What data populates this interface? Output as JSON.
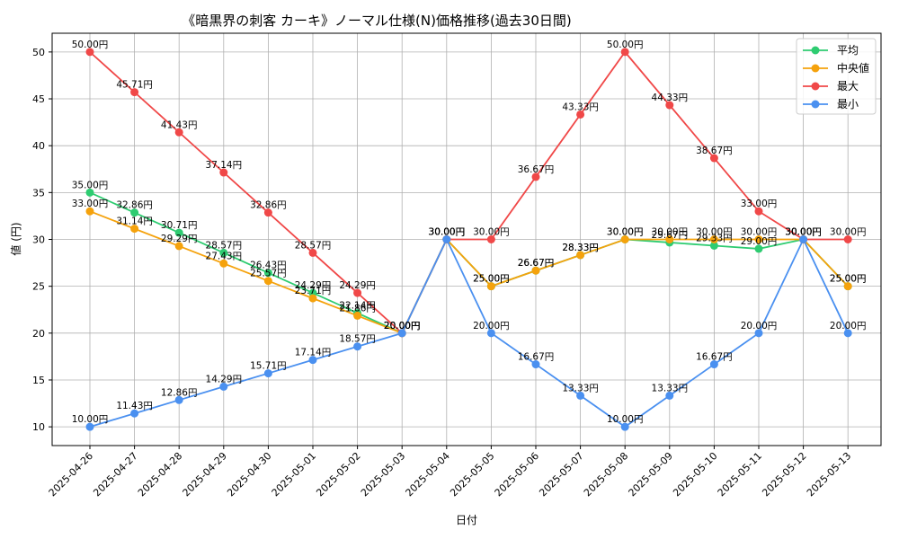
{
  "chart_data": {
    "type": "line",
    "title": "《暗黒界の刺客 カーキ》ノーマル仕様(N)価格推移(過去30日間)",
    "xlabel": "日付",
    "ylabel": "値 (円)",
    "ylim": [
      8.0,
      52.0
    ],
    "yticks": [
      10,
      15,
      20,
      25,
      30,
      35,
      40,
      45,
      50
    ],
    "grid": true,
    "legend_position": "top-right",
    "label_suffix": "円",
    "categories": [
      "2025-04-26",
      "2025-04-27",
      "2025-04-28",
      "2025-04-29",
      "2025-04-30",
      "2025-05-01",
      "2025-05-02",
      "2025-05-03",
      "2025-05-04",
      "2025-05-05",
      "2025-05-06",
      "2025-05-07",
      "2025-05-08",
      "2025-05-09",
      "2025-05-10",
      "2025-05-11",
      "2025-05-12",
      "2025-05-13"
    ],
    "series": [
      {
        "name": "平均",
        "color": "#2ecc71",
        "values": [
          35.0,
          32.86,
          30.71,
          28.57,
          26.43,
          24.29,
          22.14,
          20.0,
          30.0,
          25.0,
          26.67,
          28.33,
          30.0,
          29.67,
          29.33,
          29.0,
          30.0,
          25.0
        ]
      },
      {
        "name": "中央値",
        "color": "#f5a20c",
        "values": [
          33.0,
          31.14,
          29.29,
          27.43,
          25.57,
          23.71,
          21.86,
          20.0,
          30.0,
          25.0,
          26.67,
          28.33,
          30.0,
          30.0,
          30.0,
          30.0,
          30.0,
          25.0
        ]
      },
      {
        "name": "最大",
        "color": "#f04848",
        "values": [
          50.0,
          45.71,
          41.43,
          37.14,
          32.86,
          28.57,
          24.29,
          20.0,
          30.0,
          30.0,
          36.67,
          43.33,
          50.0,
          44.33,
          38.67,
          33.0,
          30.0,
          30.0
        ]
      },
      {
        "name": "最小",
        "color": "#4a90f0",
        "values": [
          10.0,
          11.43,
          12.86,
          14.29,
          15.71,
          17.14,
          18.57,
          20.0,
          30.0,
          20.0,
          16.67,
          13.33,
          10.0,
          13.33,
          16.67,
          20.0,
          30.0,
          20.0
        ]
      }
    ]
  }
}
